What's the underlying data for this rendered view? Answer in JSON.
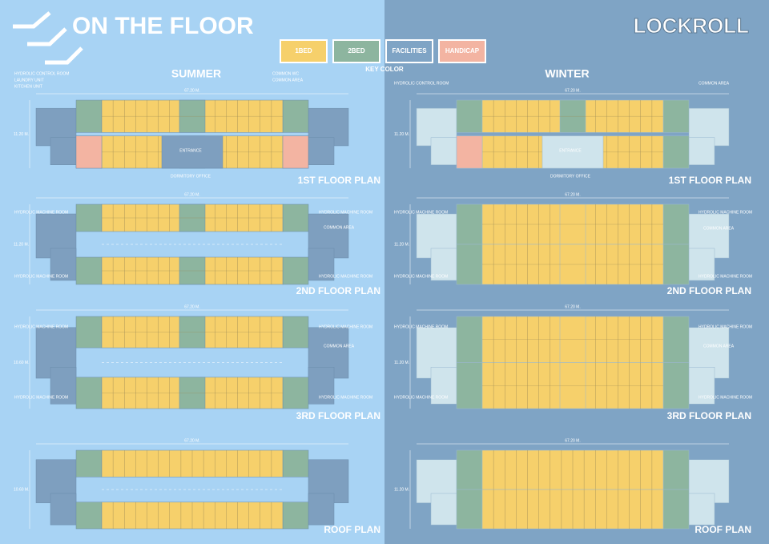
{
  "header": {
    "title": "ON THE FLOOR",
    "brand": "LOCKROLL"
  },
  "key": {
    "items": [
      "1BED",
      "2BED",
      "FACILITIES",
      "HANDICAP"
    ],
    "label": "KEY COLOR"
  },
  "columns": [
    {
      "title": "SUMMER",
      "plans": [
        {
          "title": "1ST FLOOR PLAN",
          "width": "67.20 M.",
          "height": "11.20 M.",
          "labels": [
            "HYDROLIC CONTROL ROOM",
            "LAUNDRY UNIT",
            "KITCHEN UNIT",
            "COMMON WC",
            "COMMON AREA",
            "ENTRANCE",
            "DORMITORY OFFICE"
          ]
        },
        {
          "title": "2ND FLOOR PLAN",
          "width": "67.20 M.",
          "height": "11.20 M.",
          "labels": [
            "HYDROLIC MACHINE ROOM",
            "HYDROLIC MACHINE ROOM",
            "COMMON AREA",
            "HYDROLIC MACHINE ROOM",
            "HYDROLIC MACHINE ROOM"
          ]
        },
        {
          "title": "3RD FLOOR PLAN",
          "width": "67.20 M.",
          "height": "10.60 M.",
          "labels": [
            "HYDROLIC MACHINE ROOM",
            "HYDROLIC MACHINE ROOM",
            "COMMON AREA",
            "HYDROLIC MACHINE ROOM",
            "HYDROLIC MACHINE ROOM"
          ]
        },
        {
          "title": "ROOF PLAN",
          "width": "67.20 M.",
          "height": "10.60 M.",
          "labels": []
        }
      ]
    },
    {
      "title": "WINTER",
      "plans": [
        {
          "title": "1ST FLOOR PLAN",
          "width": "67.20 M.",
          "height": "11.20 M.",
          "labels": [
            "HYDROLIC CONTROL ROOM",
            "COMMON AREA",
            "ENTRANCE",
            "DORMITORY OFFICE"
          ]
        },
        {
          "title": "2ND FLOOR PLAN",
          "width": "67.20 M.",
          "height": "11.20 M.",
          "labels": [
            "HYDROLIC MACHINE ROOM",
            "HYDROLIC MACHINE ROOM",
            "COMMON AREA",
            "HYDROLIC MACHINE ROOM",
            "HYDROLIC MACHINE ROOM"
          ]
        },
        {
          "title": "3RD FLOOR PLAN",
          "width": "67.20 M.",
          "height": "11.20 M.",
          "labels": [
            "HYDROLIC MACHINE ROOM",
            "HYDROLIC MACHINE ROOM",
            "COMMON AREA",
            "HYDROLIC MACHINE ROOM",
            "HYDROLIC MACHINE ROOM"
          ]
        },
        {
          "title": "ROOF PLAN",
          "width": "67.20 M.",
          "height": "11.20 M.",
          "labels": []
        }
      ]
    }
  ]
}
